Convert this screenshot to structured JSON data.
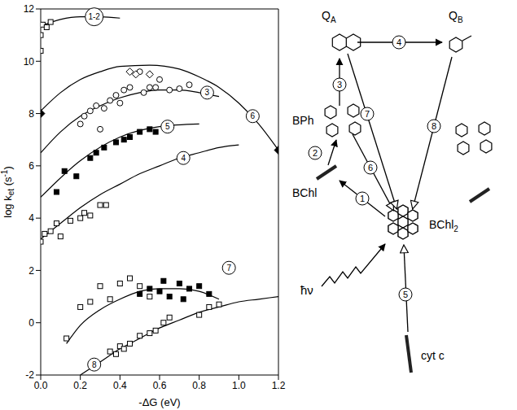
{
  "chart_data": {
    "type": "line",
    "x_label": "-ΔG (eV)",
    "y_label": [
      {
        "text": "log k"
      },
      {
        "text": "et",
        "sub": true
      },
      {
        "text": " (s"
      },
      {
        "text": "-1",
        "sup": true
      },
      {
        "text": ")"
      }
    ],
    "xlim": [
      0,
      1.2
    ],
    "ylim": [
      -2,
      12
    ],
    "xticks": [
      {
        "value": 0,
        "label": "0.0"
      },
      0.2,
      0.4,
      0.6,
      0.8,
      {
        "value": 1,
        "label": "1.0"
      },
      1.2
    ],
    "yticks": [
      -2,
      0,
      2,
      4,
      6,
      8,
      10,
      12
    ],
    "series": [
      {
        "name": "1-2",
        "type": "line",
        "color": "#000000",
        "x": [
          0,
          0.1,
          0.2,
          0.3,
          0.4
        ],
        "values": [
          11.35,
          11.6,
          11.7,
          11.7,
          11.65
        ],
        "label_at": [
          0.27,
          11.7
        ],
        "points": [
          {
            "marker": "square",
            "x": [
              0,
              0,
              0.01,
              0.03,
              0.05
            ],
            "y": [
              10.4,
              11.0,
              11.4,
              11.3,
              11.5
            ]
          }
        ]
      },
      {
        "name": "3",
        "type": "line",
        "color": "#000000",
        "x": [
          0,
          0.1,
          0.2,
          0.3,
          0.4,
          0.5,
          0.6,
          0.7,
          0.8,
          0.9
        ],
        "values": [
          6.5,
          7.3,
          7.9,
          8.3,
          8.6,
          8.8,
          8.9,
          8.9,
          8.8,
          8.65
        ],
        "label_at": [
          0.84,
          8.8
        ],
        "points": [
          {
            "marker": "circle",
            "x": [
              0.2,
              0.22,
              0.25,
              0.28,
              0.3,
              0.32,
              0.35,
              0.38,
              0.4,
              0.42,
              0.45,
              0.5,
              0.52,
              0.55,
              0.58,
              0.6,
              0.65,
              0.7,
              0.75
            ],
            "y": [
              7.6,
              7.9,
              8.1,
              8.3,
              7.4,
              8.2,
              8.5,
              8.7,
              8.4,
              8.9,
              9.0,
              9.6,
              8.8,
              9.0,
              9.0,
              9.3,
              8.9,
              8.95,
              9.1
            ]
          },
          {
            "marker": "diamond",
            "x": [
              0.45,
              0.48,
              0.55
            ],
            "y": [
              9.6,
              9.5,
              9.5
            ]
          }
        ]
      },
      {
        "name": "4",
        "type": "line",
        "color": "#000000",
        "x": [
          0,
          0.1,
          0.2,
          0.3,
          0.4,
          0.5,
          0.6,
          0.7,
          0.8,
          0.9,
          1.0
        ],
        "values": [
          3.2,
          3.8,
          4.4,
          4.9,
          5.3,
          5.7,
          6.0,
          6.3,
          6.5,
          6.7,
          6.8
        ],
        "label_at": [
          0.72,
          6.3
        ],
        "points": [
          {
            "marker": "square",
            "x": [
              0,
              0.02,
              0.05,
              0.08,
              0.1,
              0.15,
              0.2,
              0.22,
              0.25,
              0.3,
              0.33
            ],
            "y": [
              3.1,
              3.4,
              3.5,
              3.8,
              3.3,
              3.9,
              4.0,
              4.2,
              4.1,
              4.5,
              4.5
            ]
          }
        ]
      },
      {
        "name": "5",
        "type": "line",
        "color": "#000000",
        "x": [
          0,
          0.2,
          0.4,
          0.6,
          0.8
        ],
        "values": [
          4.8,
          6.2,
          7.1,
          7.5,
          7.6
        ],
        "label_at": [
          0.64,
          7.5
        ],
        "points": [
          {
            "marker": "filled_square",
            "x": [
              0.08,
              0.12,
              0.18,
              0.25,
              0.28,
              0.32,
              0.38,
              0.42,
              0.45,
              0.5,
              0.55,
              0.58
            ],
            "y": [
              5.0,
              5.8,
              5.6,
              6.3,
              6.5,
              6.7,
              6.9,
              7.0,
              7.1,
              7.3,
              7.4,
              7.3
            ]
          }
        ]
      },
      {
        "name": "6",
        "type": "line",
        "color": "#000000",
        "x": [
          0,
          0.1,
          0.2,
          0.3,
          0.4,
          0.55,
          0.7,
          0.8,
          0.9,
          1.0,
          1.1,
          1.2
        ],
        "values": [
          8.1,
          8.8,
          9.3,
          9.6,
          9.8,
          9.85,
          9.7,
          9.4,
          9.0,
          8.4,
          7.6,
          6.6
        ],
        "label_at": [
          1.07,
          7.9
        ],
        "points": [
          {
            "marker": "filled_diamond",
            "x": [
              0,
              1.2
            ],
            "y": [
              8.0,
              6.6
            ]
          }
        ]
      },
      {
        "name": "7",
        "type": "line",
        "color": "#000000",
        "x": [
          0.13,
          0.2,
          0.3,
          0.4,
          0.5,
          0.6,
          0.7,
          0.8,
          0.9
        ],
        "values": [
          -0.8,
          -0.1,
          0.5,
          0.9,
          1.2,
          1.3,
          1.3,
          1.2,
          0.9
        ],
        "label_at": [
          0.95,
          2.1
        ],
        "points": [
          {
            "marker": "square",
            "x": [
              0.13,
              0.2,
              0.25,
              0.3,
              0.35,
              0.4,
              0.45,
              0.5,
              0.55
            ],
            "y": [
              -0.6,
              0.6,
              0.8,
              1.4,
              0.9,
              1.5,
              1.7,
              1.4,
              1.0
            ]
          },
          {
            "marker": "filled_square",
            "x": [
              0.5,
              0.55,
              0.6,
              0.62,
              0.65,
              0.7,
              0.72,
              0.75,
              0.8,
              0.85
            ],
            "y": [
              1.1,
              1.3,
              1.2,
              1.6,
              1.0,
              1.5,
              0.9,
              1.3,
              1.4,
              1.1
            ]
          }
        ]
      },
      {
        "name": "8",
        "type": "line",
        "color": "#000000",
        "x": [
          0.2,
          0.3,
          0.4,
          0.5,
          0.6,
          0.7,
          0.8,
          0.9,
          1.0,
          1.1,
          1.2
        ],
        "values": [
          -2.0,
          -1.5,
          -1.0,
          -0.6,
          -0.2,
          0.1,
          0.4,
          0.6,
          0.8,
          0.9,
          1.0
        ],
        "label_at": [
          0.27,
          -1.6
        ],
        "points": [
          {
            "marker": "square",
            "x": [
              0.35,
              0.38,
              0.4,
              0.42,
              0.45,
              0.5,
              0.55,
              0.58,
              0.62,
              0.65,
              0.8,
              0.85,
              0.9
            ],
            "y": [
              -1.1,
              -1.2,
              -0.9,
              -1.0,
              -0.8,
              -0.5,
              -0.4,
              -0.3,
              0.0,
              0.2,
              0.3,
              0.6,
              0.7
            ]
          }
        ]
      }
    ]
  },
  "diagram": {
    "molecules": [
      {
        "label": "Q",
        "sub": "A"
      },
      {
        "label": "Q",
        "sub": "B"
      },
      {
        "label": "BPh"
      },
      {
        "label": "BChl"
      },
      {
        "label": "BChl",
        "sub": "2"
      },
      {
        "label": "cyt c"
      }
    ],
    "light": "ħν",
    "steps": [
      "1",
      "2",
      "3",
      "4",
      "5",
      "6",
      "7",
      "8"
    ]
  }
}
